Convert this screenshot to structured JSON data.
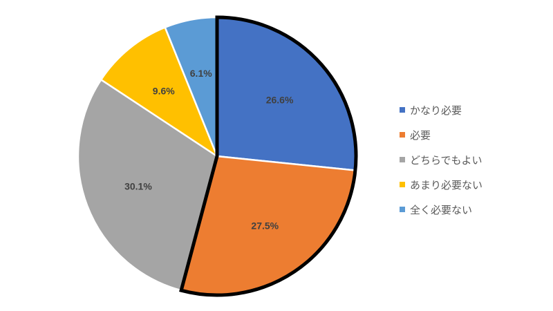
{
  "chart_data": {
    "type": "pie",
    "categories": [
      "かなり必要",
      "必要",
      "どちらでもよい",
      "あまり必要ない",
      "全く必要ない"
    ],
    "values": [
      26.6,
      27.5,
      30.1,
      9.6,
      6.1
    ],
    "data_labels": [
      "26.6%",
      "27.5%",
      "30.1%",
      "9.6%",
      "6.1%"
    ],
    "colors": [
      "#4472c4",
      "#ed7d31",
      "#a5a5a5",
      "#ffc000",
      "#5b9bd5"
    ],
    "highlighted": [
      0,
      1
    ],
    "start_angle": "12 o'clock, clockwise",
    "legend_position": "right"
  }
}
